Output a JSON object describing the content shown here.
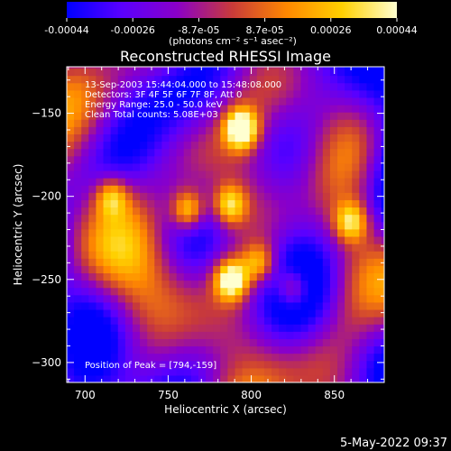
{
  "chart_data": {
    "type": "heatmap",
    "title": "Reconstructed RHESSI Image",
    "xlabel": "Heliocentric X (arcsec)",
    "ylabel": "Heliocentric Y (arcsec)",
    "xlim": [
      689,
      880
    ],
    "ylim": [
      -312,
      -122
    ],
    "x_ticks": [
      700,
      750,
      800,
      850
    ],
    "y_ticks": [
      -150,
      -200,
      -250,
      -300
    ],
    "colorbar": {
      "range": [
        -0.00044,
        0.00044
      ],
      "ticks": [
        "-0.00044",
        "-0.00026",
        "-8.7e-05",
        "8.7e-05",
        "0.00026",
        "0.00044"
      ],
      "unit_label": "(photons cm⁻² s⁻¹ asec⁻²)",
      "colormap": [
        "#0000ff",
        "#5a00ff",
        "#8a00c8",
        "#c83a3a",
        "#ff8800",
        "#ffd000",
        "#ffffd0"
      ]
    },
    "annotations": [
      "13-Sep-2003 15:44:04.000 to 15:48:08.000",
      "Detectors: 3F 4F 5F 6F 7F 8F, Att 0",
      "Energy Range: 25.0 - 50.0 keV",
      "Clean    Total counts: 5.08E+03"
    ],
    "peak_label": "Position of Peak = [794,-159]",
    "bright_sources": [
      {
        "x": 794,
        "y": -159,
        "level": 1.0
      },
      {
        "x": 788,
        "y": -250,
        "level": 0.9
      },
      {
        "x": 762,
        "y": -208,
        "level": 0.75
      },
      {
        "x": 787,
        "y": -205,
        "level": 0.7
      },
      {
        "x": 860,
        "y": -215,
        "level": 0.65
      },
      {
        "x": 825,
        "y": -255,
        "level": 0.6
      },
      {
        "x": 716,
        "y": -200,
        "level": 0.55
      },
      {
        "x": 805,
        "y": -240,
        "level": 0.55
      }
    ]
  },
  "footer": {
    "timestamp": "5-May-2022 09:37"
  }
}
